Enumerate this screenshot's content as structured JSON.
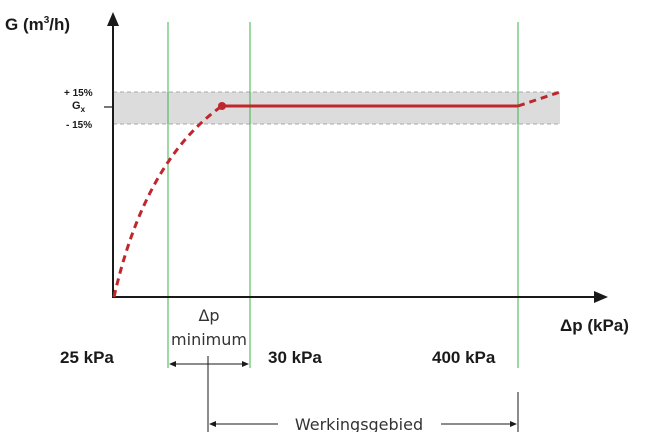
{
  "diagram": {
    "y_axis_label": {
      "prefix": "G (m",
      "sup": "3",
      "suffix": "/h)"
    },
    "x_axis_label": "Δp (kPa)",
    "band_upper_label": "+ 15%",
    "band_center_label": {
      "base": "G",
      "sub": "x"
    },
    "band_lower_label": "- 15%",
    "tick_labels": [
      "25 kPa",
      "30 kPa",
      "400 kPa"
    ],
    "delta_p_label": "Δp",
    "minimum_label": "minimum",
    "working_range_label": "Werkingsgebied",
    "colors": {
      "curve": "#c0272d",
      "vertical_lines": "#3db34a",
      "band_fill": "#dcdcdc",
      "band_border": "#a8a8a8",
      "axis": "#1a1a1a"
    }
  }
}
